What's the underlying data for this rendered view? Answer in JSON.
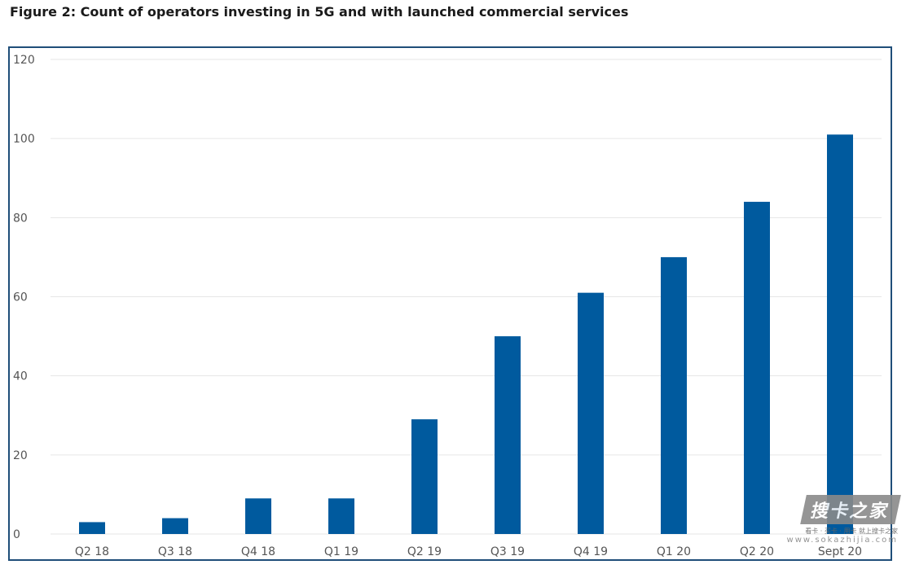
{
  "figure": {
    "title": "Figure 2: Count of operators investing in 5G and with launched commercial services"
  },
  "chart_data": {
    "type": "bar",
    "title": "",
    "xlabel": "",
    "ylabel": "",
    "categories": [
      "Q2 18",
      "Q3 18",
      "Q4 18",
      "Q1 19",
      "Q2 19",
      "Q3 19",
      "Q4 19",
      "Q1 20",
      "Q2 20",
      "Sept 20"
    ],
    "values": [
      3,
      4,
      9,
      9,
      29,
      50,
      61,
      70,
      84,
      101
    ],
    "ylim": [
      0,
      120
    ],
    "yticks": [
      0,
      20,
      40,
      60,
      80,
      100,
      120
    ],
    "grid": true,
    "legend": "none",
    "bar_color": "#005a9e"
  },
  "watermark": {
    "logo": "搜卡之家",
    "tagline": "看卡 · 买卡 · 用卡 就上搜卡之家",
    "url": "www.sokazhijia.com"
  }
}
